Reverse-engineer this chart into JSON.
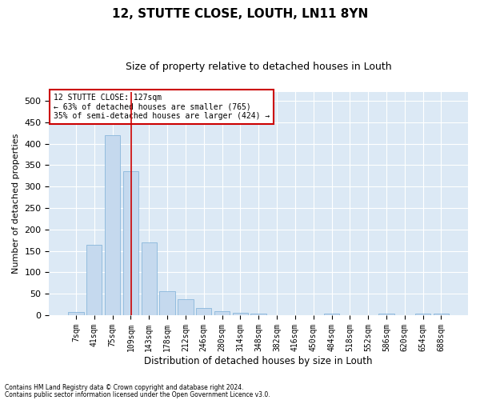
{
  "title": "12, STUTTE CLOSE, LOUTH, LN11 8YN",
  "subtitle": "Size of property relative to detached houses in Louth",
  "xlabel": "Distribution of detached houses by size in Louth",
  "ylabel": "Number of detached properties",
  "footnote1": "Contains HM Land Registry data © Crown copyright and database right 2024.",
  "footnote2": "Contains public sector information licensed under the Open Government Licence v3.0.",
  "bar_labels": [
    "7sqm",
    "41sqm",
    "75sqm",
    "109sqm",
    "143sqm",
    "178sqm",
    "212sqm",
    "246sqm",
    "280sqm",
    "314sqm",
    "348sqm",
    "382sqm",
    "416sqm",
    "450sqm",
    "484sqm",
    "518sqm",
    "552sqm",
    "586sqm",
    "620sqm",
    "654sqm",
    "688sqm"
  ],
  "bar_values": [
    7,
    165,
    420,
    335,
    170,
    55,
    37,
    17,
    10,
    5,
    3,
    0,
    0,
    0,
    3,
    0,
    0,
    3,
    0,
    3,
    3
  ],
  "bar_color": "#c5d9ee",
  "bar_edgecolor": "#7aaed6",
  "vline_x": 3.03,
  "vline_color": "#cc0000",
  "annotation_title": "12 STUTTE CLOSE: 127sqm",
  "annotation_line1": "← 63% of detached houses are smaller (765)",
  "annotation_line2": "35% of semi-detached houses are larger (424) →",
  "annotation_box_color": "#cc0000",
  "ylim": [
    0,
    520
  ],
  "yticks": [
    0,
    50,
    100,
    150,
    200,
    250,
    300,
    350,
    400,
    450,
    500
  ],
  "background_color": "#dce9f5",
  "grid_color": "#ffffff",
  "title_fontsize": 11,
  "subtitle_fontsize": 9,
  "xlabel_fontsize": 8.5,
  "ylabel_fontsize": 8,
  "tick_fontsize": 7,
  "footnote_fontsize": 5.5,
  "annotation_fontsize": 7
}
